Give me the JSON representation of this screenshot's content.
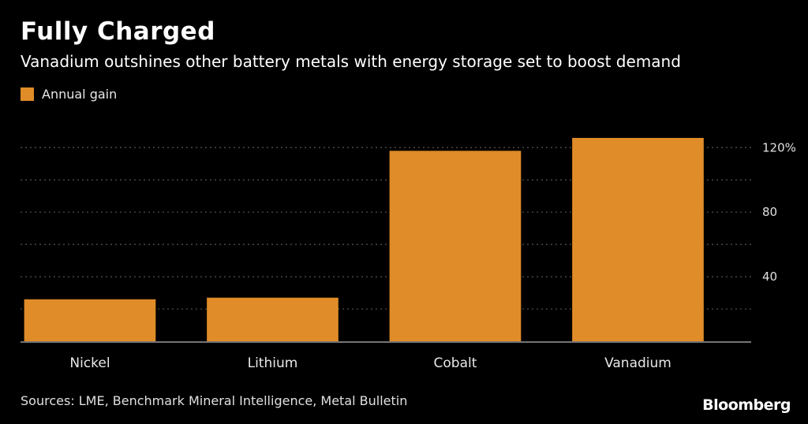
{
  "header": {
    "title": "Fully Charged",
    "subtitle": "Vanadium outshines other battery metals with energy storage set to boost demand"
  },
  "legend": {
    "label": "Annual gain"
  },
  "footer": {
    "source": "Sources: LME, Benchmark Mineral Intelligence, Metal Bulletin",
    "brand": "Bloomberg"
  },
  "colors": {
    "bar": "#e08c28",
    "grid": "#555555",
    "axis": "#9a9a9a"
  },
  "chart_data": {
    "type": "bar",
    "categories": [
      "Nickel",
      "Lithium",
      "Cobalt",
      "Vanadium"
    ],
    "series": [
      {
        "name": "Annual gain",
        "values": [
          26,
          27,
          118,
          126
        ]
      }
    ],
    "yticks": [
      40,
      80,
      120
    ],
    "ytick_labels": [
      "40",
      "80",
      "120%"
    ],
    "ylim": [
      0,
      126
    ],
    "grid": true,
    "legend_position": "top-left",
    "y_axis_side": "right"
  }
}
